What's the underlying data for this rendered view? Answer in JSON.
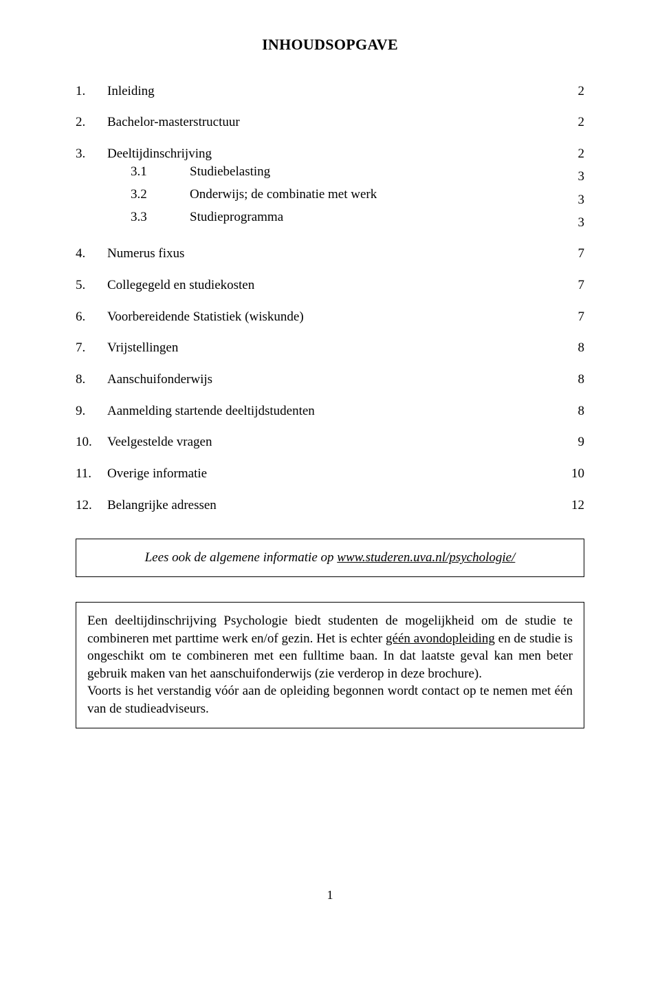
{
  "title": "INHOUDSOPGAVE",
  "toc": [
    {
      "num": "1.",
      "label": "Inleiding",
      "page": "2",
      "block": "a"
    },
    {
      "num": "2.",
      "label": "Bachelor-masterstructuur",
      "page": "2",
      "block": "b"
    },
    {
      "num": "3.",
      "label": "Deeltijdinschrijving",
      "page": "2",
      "block": "c"
    },
    {
      "num": "3.1",
      "label": "Studiebelasting",
      "page": "3",
      "block": "c",
      "sub": true
    },
    {
      "num": "3.2",
      "label": "Onderwijs; de combinatie met werk",
      "page": "3",
      "block": "c",
      "sub": true
    },
    {
      "num": "3.3",
      "label": "Studieprogramma",
      "page": "3",
      "block": "c",
      "sub": true
    },
    {
      "num": "4.",
      "label": "Numerus fixus",
      "page": "7",
      "block": "d"
    },
    {
      "num": "5.",
      "label": "Collegegeld en studiekosten",
      "page": "7",
      "block": "e"
    },
    {
      "num": "6.",
      "label": "Voorbereidende Statistiek (wiskunde)",
      "page": "7",
      "block": "f"
    },
    {
      "num": "7.",
      "label": "Vrijstellingen",
      "page": "8",
      "block": "g"
    },
    {
      "num": "8.",
      "label": "Aanschuifonderwijs",
      "page": "8",
      "block": "h"
    },
    {
      "num": "9.",
      "label": "Aanmelding startende deeltijdstudenten",
      "page": "8",
      "block": "i"
    },
    {
      "num": "10.",
      "label": "Veelgestelde vragen",
      "page": "9",
      "block": "j"
    },
    {
      "num": "11.",
      "label": "Overige informatie",
      "page": "10",
      "block": "k"
    },
    {
      "num": "12.",
      "label": "Belangrijke adressen",
      "page": "12",
      "block": "l"
    }
  ],
  "callout": {
    "prefix": "Lees ook de algemene informatie op ",
    "link": "www.studeren.uva.nl/psychologie/"
  },
  "info_box": {
    "t1": "Een deeltijdinschrijving Psychologie biedt studenten de mogelijkheid om de studie te combineren met parttime werk en/of gezin. Het is echter ",
    "u1": "géén avondopleiding",
    "t2": " en de studie is ongeschikt om te combineren met een fulltime baan. In dat laatste geval kan men beter gebruik maken van het aanschuifonderwijs (zie verderop in deze brochure).",
    "t3": "Voorts is het verstandig vóór aan de opleiding begonnen wordt contact op te nemen met één van de studieadviseurs."
  },
  "page_number": "1"
}
